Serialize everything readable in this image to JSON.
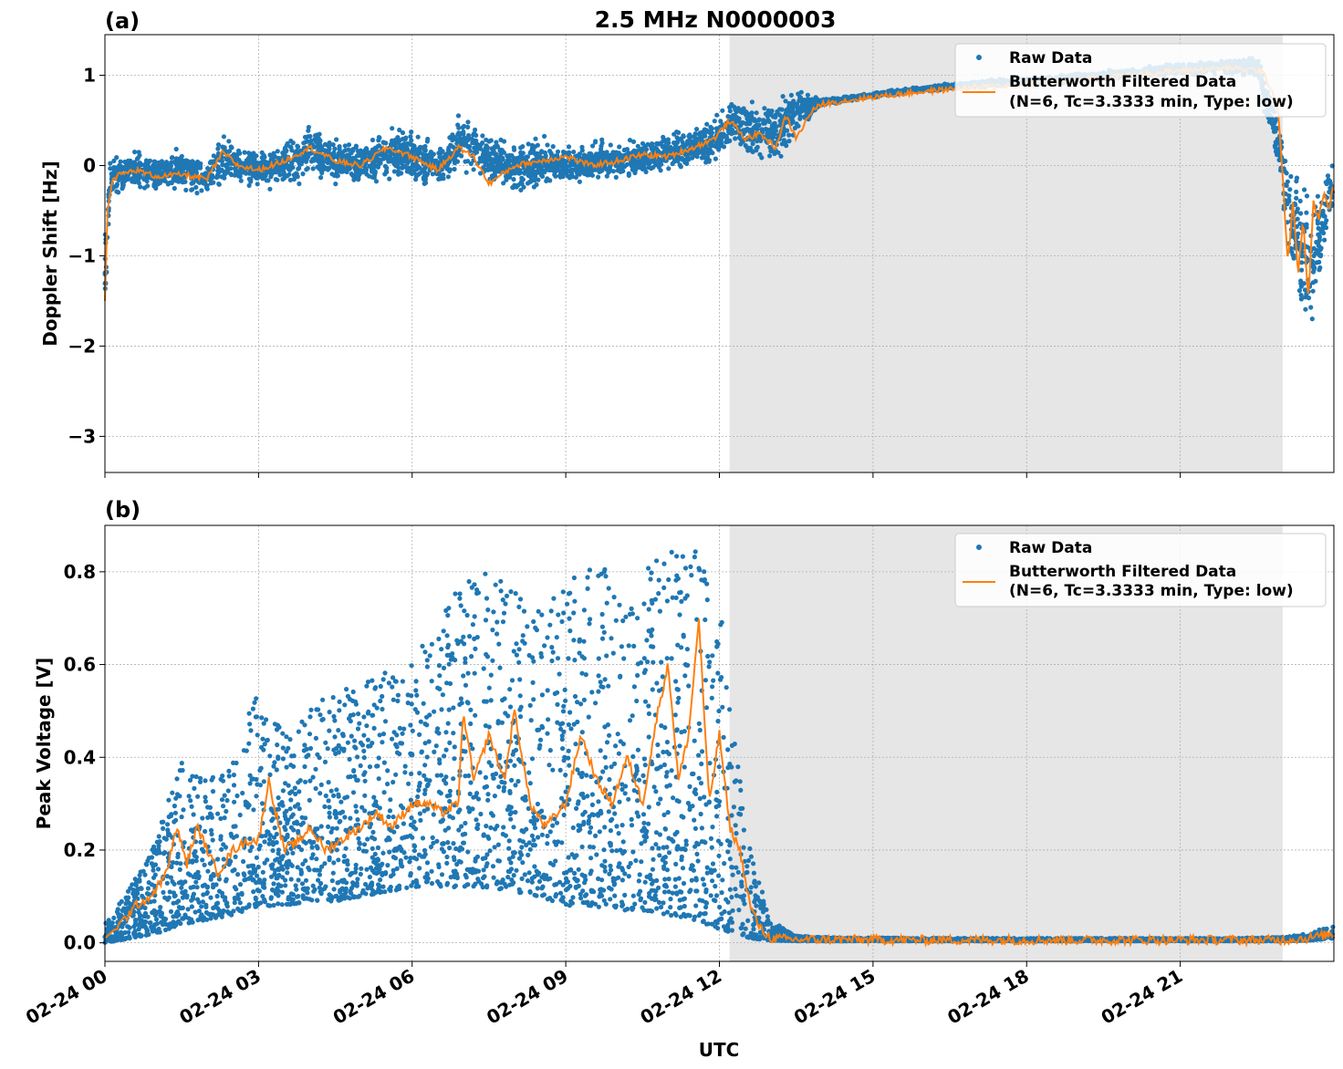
{
  "figure": {
    "title": "2.5 MHz N0000003",
    "xlabel": "UTC",
    "x_ticks": [
      "02-24 00",
      "02-24 03",
      "02-24 06",
      "02-24 09",
      "02-24 12",
      "02-24 15",
      "02-24 18",
      "02-24 21"
    ],
    "shaded_region": {
      "start": "02-24 12:12",
      "end": "02-24 23:00",
      "color": "#e6e6e6"
    },
    "colors": {
      "raw": "#1f77b4",
      "filtered": "#ff7f0e",
      "grid": "#b0b0b0"
    }
  },
  "chart_data": [
    {
      "type": "scatter",
      "panel_label": "(a)",
      "ylabel": "Doppler Shift [Hz]",
      "ylim": [
        -3.4,
        1.45
      ],
      "yticks": [
        1,
        0,
        -1,
        -2,
        -3
      ],
      "ytick_labels": [
        "1",
        "0",
        "−1",
        "−2",
        "−3"
      ],
      "xlim_hours": [
        0,
        24
      ],
      "grid": true,
      "legend_position": "top-right",
      "legend": [
        "Raw Data",
        "Butterworth Filtered Data",
        "(N=6, Tc=3.3333 min, Type: low)"
      ],
      "series": [
        {
          "name": "Raw Data",
          "kind": "points",
          "color": "#1f77b4",
          "x_hours": [
            0,
            0.1,
            0.3,
            0.6,
            1,
            1.5,
            2,
            2.3,
            2.6,
            3,
            3.5,
            4,
            4.5,
            5,
            5.5,
            6,
            6.5,
            7,
            7.5,
            8,
            8.5,
            9,
            9.5,
            10,
            10.5,
            11,
            11.5,
            12,
            12.3,
            12.6,
            13,
            13.3,
            13.6,
            14,
            15,
            16,
            17,
            18,
            19,
            20,
            21,
            22,
            22.5,
            22.9,
            23.1,
            23.3,
            23.5,
            23.7,
            23.9
          ],
          "y_center": [
            -1.2,
            -0.1,
            -0.1,
            -0.05,
            -0.1,
            -0.05,
            -0.15,
            0.1,
            0.0,
            -0.05,
            0.0,
            0.15,
            0.05,
            0.0,
            0.15,
            0.1,
            0.0,
            0.25,
            0.1,
            -0.05,
            0.05,
            0.0,
            0.05,
            0.05,
            0.1,
            0.15,
            0.2,
            0.3,
            0.5,
            0.4,
            0.35,
            0.5,
            0.65,
            0.7,
            0.78,
            0.85,
            0.9,
            0.93,
            0.97,
            1.02,
            1.07,
            1.1,
            1.1,
            0.3,
            -0.4,
            -0.8,
            -1.2,
            -0.9,
            -0.3
          ],
          "y_spread": [
            0.8,
            0.3,
            0.3,
            0.3,
            0.3,
            0.3,
            0.3,
            0.4,
            0.3,
            0.3,
            0.35,
            0.4,
            0.35,
            0.35,
            0.4,
            0.4,
            0.35,
            0.45,
            0.4,
            0.4,
            0.35,
            0.3,
            0.3,
            0.3,
            0.3,
            0.3,
            0.3,
            0.35,
            0.4,
            0.45,
            0.5,
            0.5,
            0.35,
            0.05,
            0.04,
            0.04,
            0.05,
            0.06,
            0.07,
            0.08,
            0.1,
            0.12,
            0.2,
            0.5,
            0.9,
            1.1,
            1.3,
            0.9,
            0.5
          ]
        },
        {
          "name": "Butterworth Filtered Data",
          "kind": "line",
          "color": "#ff7f0e",
          "x_hours": [
            0,
            0.05,
            0.15,
            0.3,
            0.6,
            1,
            1.5,
            2,
            2.3,
            2.6,
            3,
            3.5,
            4,
            4.5,
            5,
            5.5,
            6,
            6.5,
            6.9,
            7.2,
            7.5,
            8,
            8.5,
            9,
            9.5,
            10,
            10.5,
            11,
            11.5,
            11.9,
            12.2,
            12.5,
            12.8,
            13.1,
            13.3,
            13.5,
            13.8,
            14,
            14.5,
            15,
            16,
            17,
            18,
            19,
            20,
            21,
            22,
            22.6,
            22.9,
            23.0,
            23.1,
            23.2,
            23.3,
            23.4,
            23.5,
            23.6,
            23.7,
            23.8,
            23.9,
            24
          ],
          "y": [
            -1.5,
            -0.5,
            -0.15,
            -0.1,
            -0.05,
            -0.12,
            -0.1,
            -0.15,
            0.15,
            0.0,
            -0.05,
            0.05,
            0.2,
            0.05,
            0.0,
            0.2,
            0.1,
            -0.05,
            0.2,
            0.1,
            -0.2,
            0.0,
            0.05,
            0.1,
            0.0,
            0.05,
            0.12,
            0.1,
            0.2,
            0.3,
            0.5,
            0.3,
            0.35,
            0.2,
            0.55,
            0.3,
            0.6,
            0.68,
            0.72,
            0.76,
            0.82,
            0.87,
            0.9,
            0.95,
            1.0,
            1.05,
            1.08,
            1.05,
            0.7,
            -0.1,
            -1.1,
            -0.4,
            -1.2,
            -0.6,
            -1.5,
            -0.4,
            -0.6,
            -0.3,
            -0.5,
            -0.2
          ]
        }
      ]
    },
    {
      "type": "scatter",
      "panel_label": "(b)",
      "ylabel": "Peak Voltage [V]",
      "ylim": [
        -0.04,
        0.9
      ],
      "yticks": [
        0.0,
        0.2,
        0.4,
        0.6,
        0.8
      ],
      "ytick_labels": [
        "0.0",
        "0.2",
        "0.4",
        "0.6",
        "0.8"
      ],
      "xlim_hours": [
        0,
        24
      ],
      "grid": true,
      "legend_position": "top-right",
      "legend": [
        "Raw Data",
        "Butterworth Filtered Data",
        "(N=6, Tc=3.3333 min, Type: low)"
      ],
      "series": [
        {
          "name": "Raw Data",
          "kind": "points",
          "color": "#1f77b4",
          "x_hours": [
            0,
            0.5,
            1,
            1.5,
            2,
            2.5,
            3,
            3.5,
            4,
            4.5,
            5,
            5.5,
            6,
            6.5,
            7,
            7.5,
            8,
            8.5,
            9,
            9.5,
            10,
            10.5,
            11,
            11.5,
            12,
            12.3,
            12.6,
            13,
            13.5,
            14,
            16,
            18,
            20,
            22,
            23,
            23.5,
            24
          ],
          "y_low": [
            0.0,
            0.01,
            0.02,
            0.04,
            0.05,
            0.06,
            0.08,
            0.08,
            0.09,
            0.09,
            0.1,
            0.11,
            0.12,
            0.12,
            0.12,
            0.12,
            0.11,
            0.1,
            0.08,
            0.08,
            0.07,
            0.07,
            0.06,
            0.05,
            0.03,
            0.02,
            0.01,
            0.005,
            0.004,
            0.004,
            0.004,
            0.004,
            0.004,
            0.004,
            0.004,
            0.005,
            0.01
          ],
          "y_high": [
            0.04,
            0.12,
            0.22,
            0.4,
            0.35,
            0.4,
            0.55,
            0.45,
            0.5,
            0.55,
            0.55,
            0.6,
            0.6,
            0.7,
            0.8,
            0.8,
            0.78,
            0.72,
            0.78,
            0.82,
            0.8,
            0.82,
            0.85,
            0.85,
            0.75,
            0.45,
            0.2,
            0.05,
            0.015,
            0.012,
            0.01,
            0.01,
            0.01,
            0.01,
            0.012,
            0.02,
            0.04
          ]
        },
        {
          "name": "Butterworth Filtered Data",
          "kind": "line",
          "color": "#ff7f0e",
          "x_hours": [
            0,
            0.3,
            0.6,
            0.9,
            1.2,
            1.4,
            1.6,
            1.8,
            2.0,
            2.2,
            2.5,
            2.8,
            3.0,
            3.2,
            3.5,
            3.8,
            4.0,
            4.3,
            4.6,
            5.0,
            5.3,
            5.6,
            6.0,
            6.3,
            6.6,
            6.9,
            7.0,
            7.2,
            7.5,
            7.8,
            8.0,
            8.3,
            8.6,
            9.0,
            9.3,
            9.6,
            9.9,
            10.2,
            10.5,
            10.8,
            11.0,
            11.2,
            11.4,
            11.6,
            11.8,
            12.0,
            12.2,
            12.4,
            12.6,
            12.8,
            13.0,
            13.3,
            13.6,
            14,
            16,
            18,
            20,
            22,
            23,
            23.5,
            24
          ],
          "y": [
            0.01,
            0.04,
            0.08,
            0.1,
            0.15,
            0.25,
            0.17,
            0.25,
            0.2,
            0.15,
            0.2,
            0.22,
            0.22,
            0.35,
            0.2,
            0.22,
            0.25,
            0.2,
            0.22,
            0.25,
            0.28,
            0.25,
            0.3,
            0.3,
            0.28,
            0.3,
            0.5,
            0.35,
            0.45,
            0.35,
            0.5,
            0.3,
            0.25,
            0.3,
            0.45,
            0.35,
            0.3,
            0.4,
            0.3,
            0.5,
            0.6,
            0.35,
            0.45,
            0.7,
            0.3,
            0.45,
            0.25,
            0.2,
            0.08,
            0.03,
            0.01,
            0.008,
            0.007,
            0.007,
            0.006,
            0.006,
            0.006,
            0.006,
            0.006,
            0.01,
            0.02
          ]
        }
      ]
    }
  ]
}
